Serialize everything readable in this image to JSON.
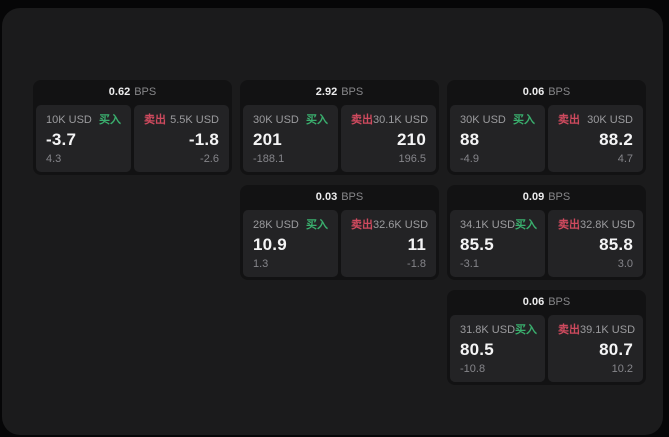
{
  "labels": {
    "bps_unit": "BPS",
    "buy": "买入",
    "sell": "卖出"
  },
  "colors": {
    "buy": "#3aaf6e",
    "sell": "#cf4a5e",
    "window_bg": "#1b1b1c",
    "card_bg": "#121213",
    "panel_bg": "#232325"
  },
  "cards": [
    {
      "row": 1,
      "col": 1,
      "bps": "0.62",
      "buy": {
        "amount": "10K USD",
        "price": "-3.7",
        "delta": "4.3"
      },
      "sell": {
        "amount": "5.5K USD",
        "price": "-1.8",
        "delta": "-2.6"
      }
    },
    {
      "row": 1,
      "col": 2,
      "bps": "2.92",
      "buy": {
        "amount": "30K USD",
        "price": "201",
        "delta": "-188.1"
      },
      "sell": {
        "amount": "30.1K USD",
        "price": "210",
        "delta": "196.5"
      }
    },
    {
      "row": 1,
      "col": 3,
      "bps": "0.06",
      "buy": {
        "amount": "30K USD",
        "price": "88",
        "delta": "-4.9"
      },
      "sell": {
        "amount": "30K USD",
        "price": "88.2",
        "delta": "4.7"
      }
    },
    {
      "row": 2,
      "col": 2,
      "bps": "0.03",
      "buy": {
        "amount": "28K USD",
        "price": "10.9",
        "delta": "1.3"
      },
      "sell": {
        "amount": "32.6K USD",
        "price": "11",
        "delta": "-1.8"
      }
    },
    {
      "row": 2,
      "col": 3,
      "bps": "0.09",
      "buy": {
        "amount": "34.1K USD",
        "price": "85.5",
        "delta": "-3.1"
      },
      "sell": {
        "amount": "32.8K USD",
        "price": "85.8",
        "delta": "3.0"
      }
    },
    {
      "row": 3,
      "col": 3,
      "bps": "0.06",
      "buy": {
        "amount": "31.8K USD",
        "price": "80.5",
        "delta": "-10.8"
      },
      "sell": {
        "amount": "39.1K USD",
        "price": "80.7",
        "delta": "10.2"
      }
    }
  ]
}
